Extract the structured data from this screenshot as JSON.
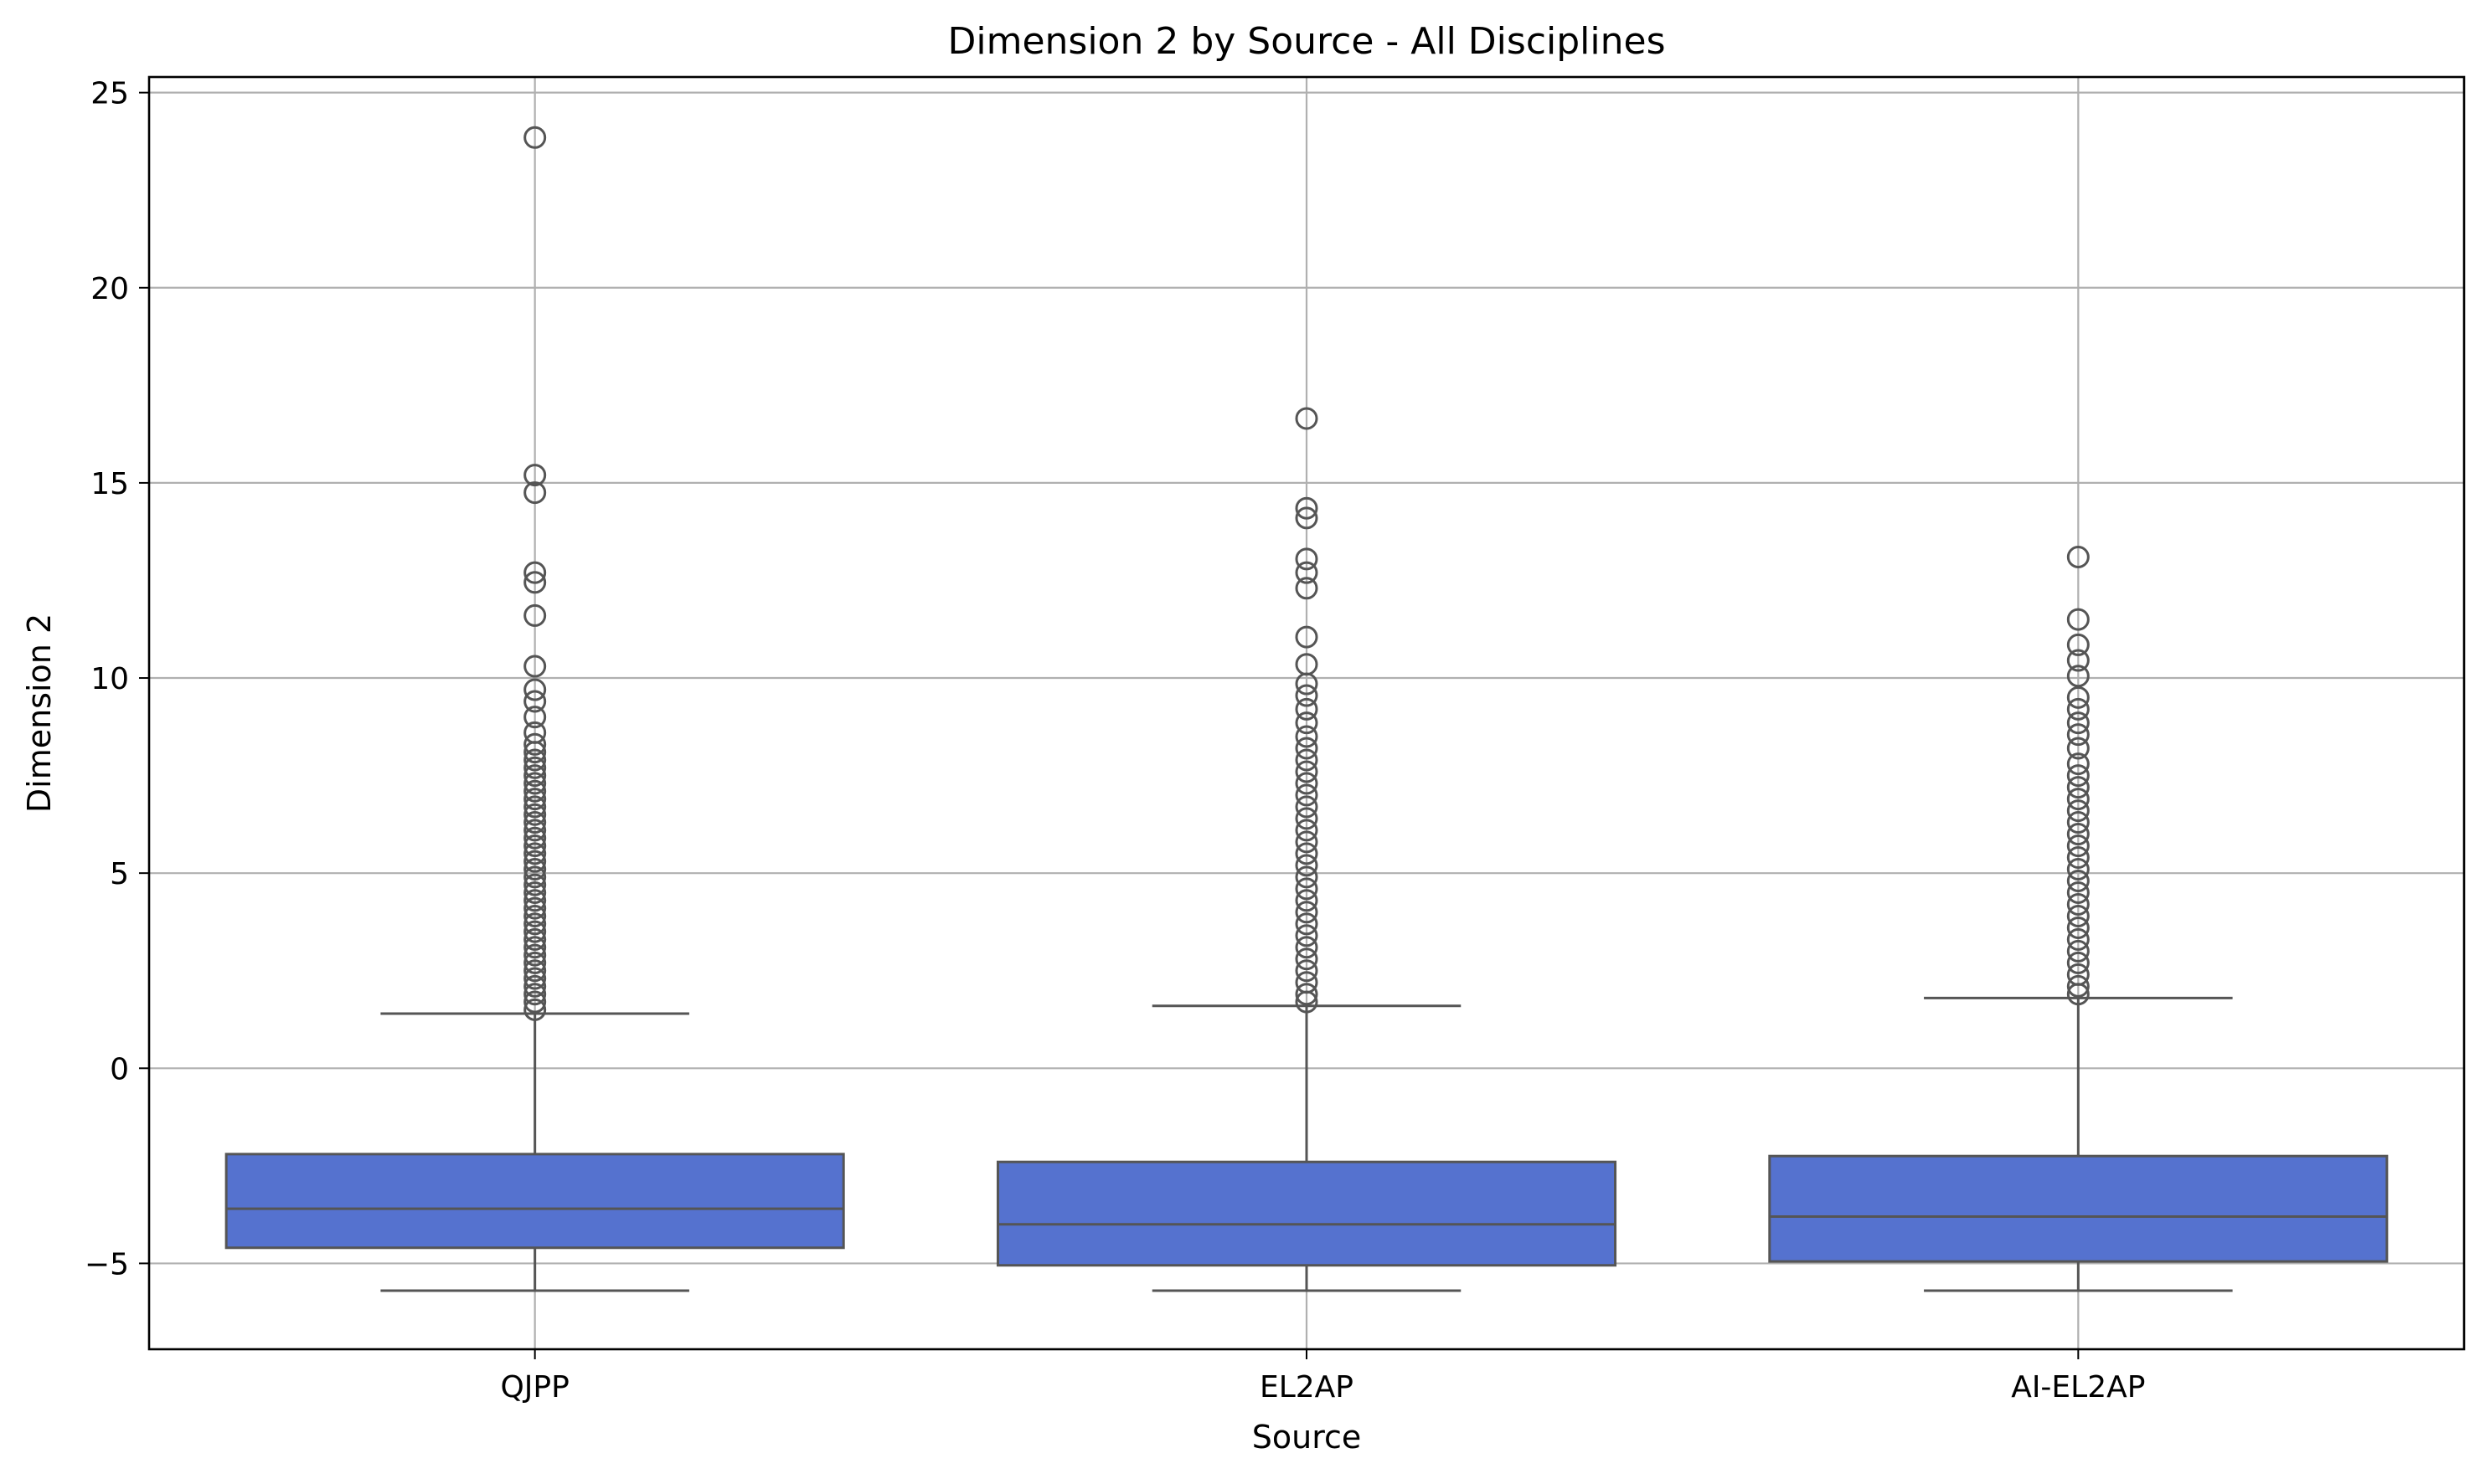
{
  "chart_data": {
    "type": "box",
    "title": "Dimension 2 by Source - All Disciplines",
    "xlabel": "Source",
    "ylabel": "Dimension 2",
    "ylim": [
      -7.2,
      25.4
    ],
    "yticks": [
      -5,
      0,
      5,
      10,
      15,
      20,
      25
    ],
    "ytick_labels": [
      "−5",
      "0",
      "5",
      "10",
      "15",
      "20",
      "25"
    ],
    "grid": true,
    "colors": {
      "box_fill": "#5572cf",
      "line": "#555555",
      "grid": "#b0b0b0"
    },
    "categories": [
      "QJPP",
      "EL2AP",
      "AI-EL2AP"
    ],
    "boxes": [
      {
        "category": "QJPP",
        "whisker_low": -5.7,
        "q1": -4.6,
        "median": -3.6,
        "q3": -2.2,
        "whisker_high": 1.4,
        "outliers": [
          23.85,
          15.2,
          14.75,
          12.7,
          12.45,
          11.6,
          10.3,
          9.7,
          9.4,
          9.0,
          8.6,
          8.3,
          8.1,
          7.9,
          7.7,
          7.5,
          7.3,
          7.1,
          6.9,
          6.7,
          6.5,
          6.3,
          6.1,
          5.9,
          5.7,
          5.5,
          5.3,
          5.1,
          4.9,
          4.7,
          4.5,
          4.3,
          4.1,
          3.9,
          3.7,
          3.5,
          3.3,
          3.1,
          2.9,
          2.7,
          2.5,
          2.3,
          2.1,
          1.9,
          1.7,
          1.5
        ]
      },
      {
        "category": "EL2AP",
        "whisker_low": -5.7,
        "q1": -5.05,
        "median": -4.0,
        "q3": -2.4,
        "whisker_high": 1.6,
        "outliers": [
          16.65,
          14.35,
          14.1,
          13.05,
          12.7,
          12.3,
          11.05,
          10.35,
          9.85,
          9.55,
          9.2,
          8.85,
          8.5,
          8.2,
          7.9,
          7.6,
          7.3,
          7.0,
          6.7,
          6.4,
          6.1,
          5.8,
          5.5,
          5.2,
          4.9,
          4.6,
          4.3,
          4.0,
          3.7,
          3.4,
          3.1,
          2.8,
          2.5,
          2.2,
          1.9,
          1.7
        ]
      },
      {
        "category": "AI-EL2AP",
        "whisker_low": -5.7,
        "q1": -4.95,
        "median": -3.8,
        "q3": -2.25,
        "whisker_high": 1.8,
        "outliers": [
          13.1,
          11.5,
          10.85,
          10.45,
          10.05,
          9.5,
          9.2,
          8.85,
          8.55,
          8.2,
          7.8,
          7.5,
          7.2,
          6.9,
          6.6,
          6.3,
          6.0,
          5.7,
          5.4,
          5.1,
          4.8,
          4.5,
          4.2,
          3.9,
          3.6,
          3.3,
          3.0,
          2.7,
          2.4,
          2.1,
          1.9
        ]
      }
    ]
  }
}
